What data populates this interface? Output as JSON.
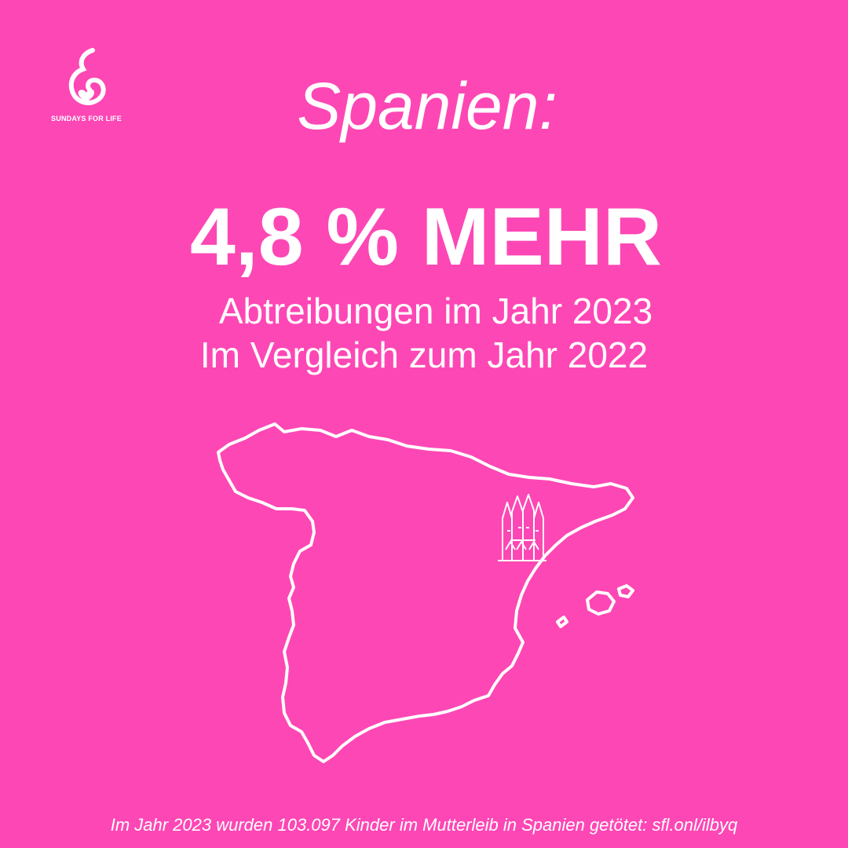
{
  "brand": {
    "name": "SUNDAYS FOR LIFE",
    "logo_icon": "mother-child-heart-icon"
  },
  "title": "Spanien:",
  "headline": "4,8 % MEHR",
  "subtitle_line1": "Abtreibungen im Jahr 2023",
  "subtitle_line2": "Im Vergleich zum Jahr 2022",
  "map": {
    "country": "spain-outline",
    "landmark_icon": "sagrada-familia-icon"
  },
  "footer": "Im Jahr 2023 wurden 103.097 Kinder im Mutterleib in Spanien getötet: sfl.onl/ilbyq",
  "colors": {
    "background": "#fd47b5",
    "foreground": "#ffffff"
  }
}
